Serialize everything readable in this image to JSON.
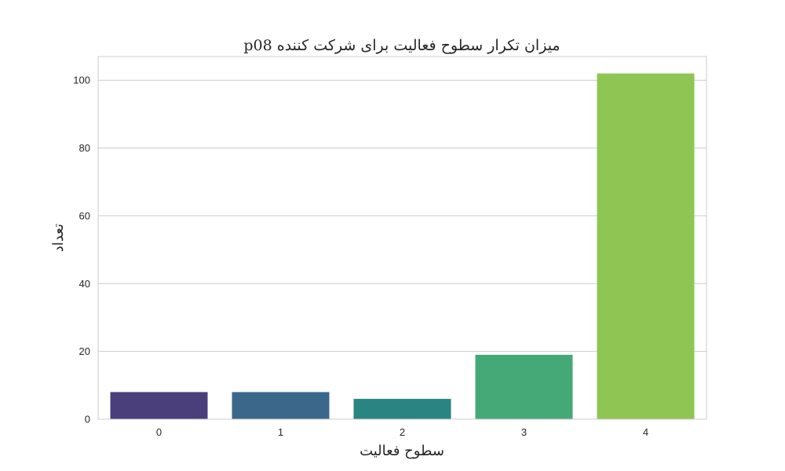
{
  "chart_data": {
    "type": "bar",
    "title": "میزان تکرار سطوح فعالیت برای شرکت کننده p08",
    "xlabel": "سطوح فعالیت",
    "ylabel": "تعداد",
    "categories": [
      "0",
      "1",
      "2",
      "3",
      "4"
    ],
    "values": [
      8,
      8,
      6,
      19,
      102
    ],
    "ylim": [
      0,
      107
    ],
    "yticks": [
      0,
      20,
      40,
      60,
      80,
      100
    ],
    "grid": true,
    "legend": "none",
    "colors": [
      "#4a3f7b",
      "#3b678a",
      "#2a8481",
      "#45a977",
      "#8fc553"
    ]
  }
}
